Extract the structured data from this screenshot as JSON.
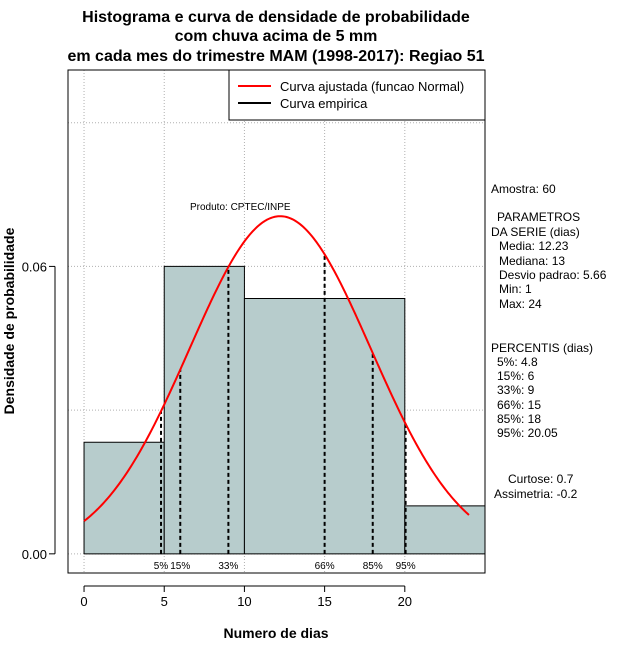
{
  "title_lines": [
    "Histograma e curva de densidade de probabilidade",
    "com chuva acima de 5 mm",
    "em cada mes do trimestre MAM (1998-2017): Regiao 51"
  ],
  "product_note": "Produto: CPTEC/INPE",
  "legend": {
    "fitted_label": "Curva ajustada (funcao Normal)",
    "empirical_label": "Curva empirica",
    "fitted_color": "#ff0000",
    "empirical_color": "#000000"
  },
  "colors": {
    "bar_fill": "#b7cccc",
    "grid": "#b0b0b0"
  },
  "stats_panel": {
    "sample": "Amostra: 60",
    "params_header_1": "PARAMETROS",
    "params_header_2": "DA SERIE (dias)",
    "media": "Media: 12.23",
    "mediana": "Mediana: 13",
    "desvio": "Desvio padrao: 5.66",
    "min": "Min: 1",
    "max": "Max: 24",
    "percentis_header": "PERCENTIS (dias)",
    "p5": "5%: 4.8",
    "p15": "15%: 6",
    "p33": "33%: 9",
    "p66": "66%: 15",
    "p85": "85%: 18",
    "p95": "95%: 20.05",
    "curtose": "Curtose: 0.7",
    "assimetria": "Assimetria: -0.2"
  },
  "chart_data": {
    "type": "bar",
    "title": "Histograma e curva de densidade de probabilidade com chuva acima de 5 mm em cada mes do trimestre MAM (1998-2017): Regiao 51",
    "xlabel": "Numero de dias",
    "ylabel": "Densidade de probabilidade",
    "xlim": [
      -1,
      25
    ],
    "ylim": [
      -0.004,
      0.101
    ],
    "x_ticks": [
      0,
      5,
      10,
      15,
      20
    ],
    "y_ticks": [
      0.0,
      0.06
    ],
    "y_tick_labels": [
      "0.00",
      "0.06"
    ],
    "grid": true,
    "grid_x": [
      0,
      5,
      10,
      15,
      20
    ],
    "grid_y": [
      0.0,
      0.03,
      0.06,
      0.09
    ],
    "legend_position": "top-right",
    "histogram": {
      "bins": [
        [
          0,
          5
        ],
        [
          5,
          10
        ],
        [
          10,
          20
        ],
        [
          20,
          25
        ]
      ],
      "densities": [
        0.0233,
        0.06,
        0.0533,
        0.01
      ]
    },
    "normal_fit": {
      "mean": 12.23,
      "sd": 5.66,
      "x_from": 0,
      "x_to": 24
    },
    "percentile_lines": [
      {
        "label": "5%",
        "x": 4.8
      },
      {
        "label": "15%",
        "x": 6
      },
      {
        "label": "33%",
        "x": 9
      },
      {
        "label": "66%",
        "x": 15
      },
      {
        "label": "85%",
        "x": 18
      },
      {
        "label": "95%",
        "x": 20.05
      }
    ]
  }
}
